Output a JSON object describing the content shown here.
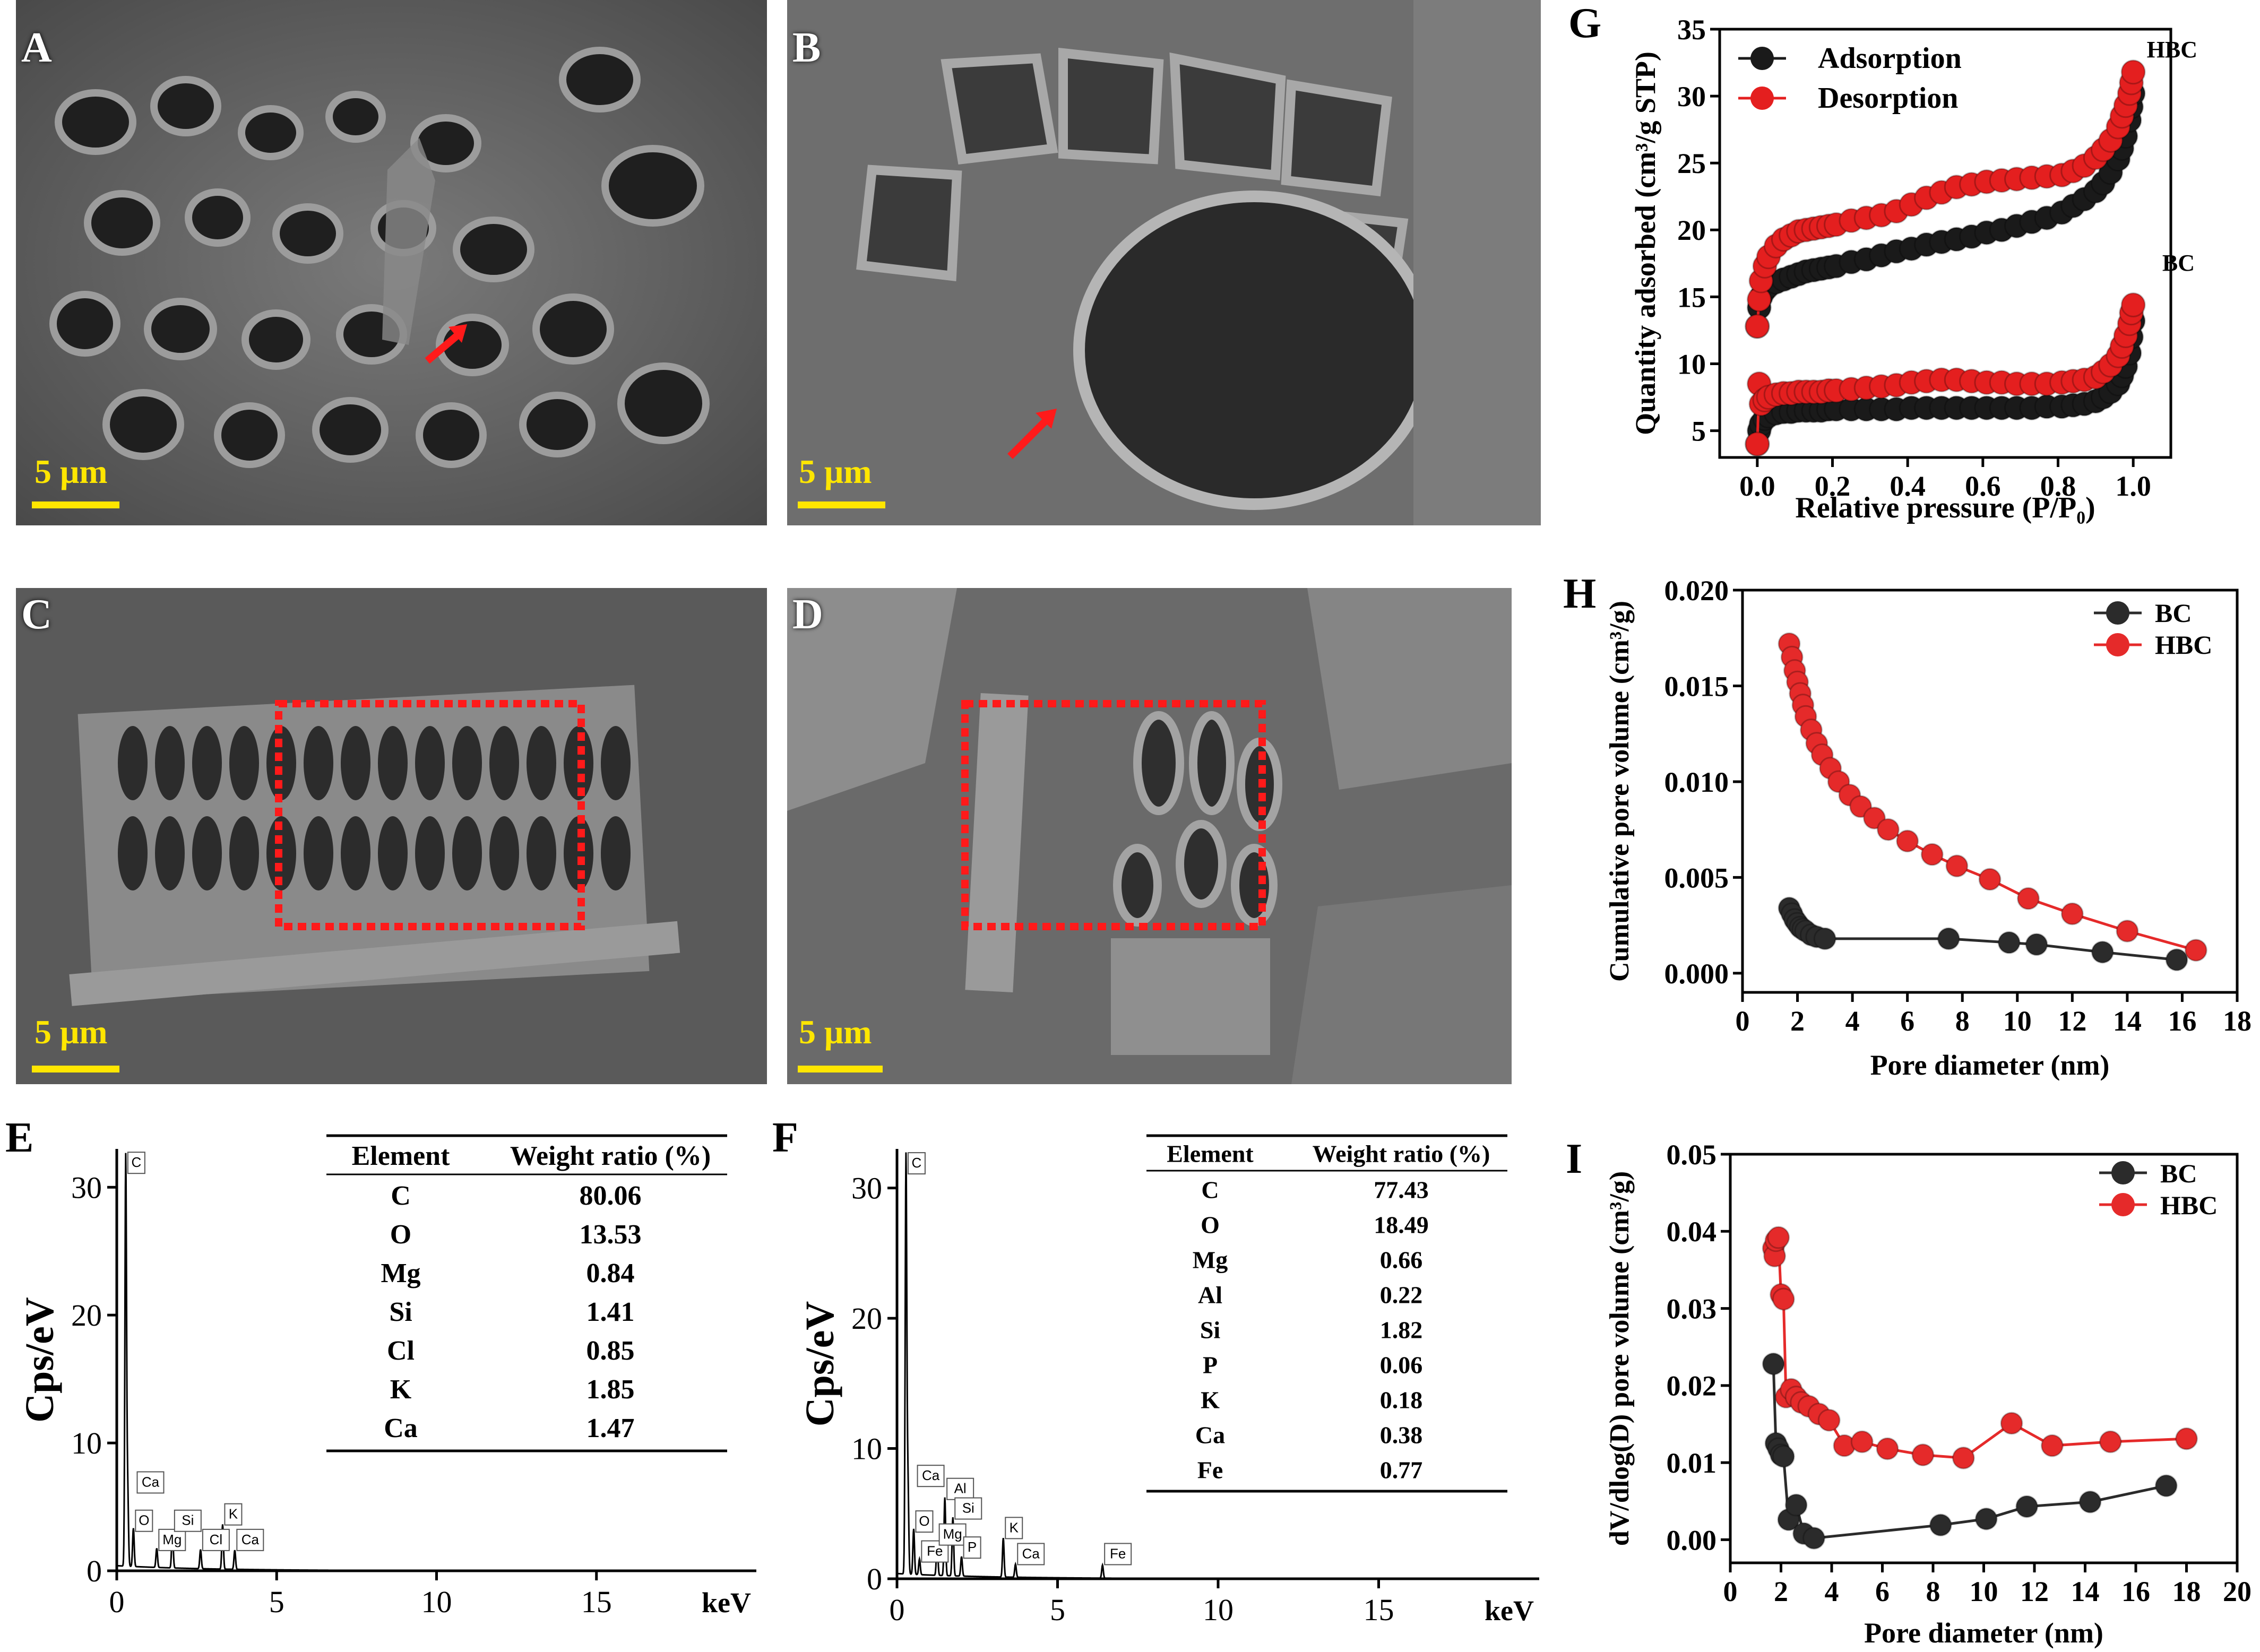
{
  "colors": {
    "adsorption": "#1a1a1a",
    "desorption": "#e41f1f",
    "bc": "#2b2b2b",
    "hbc": "#e52a2a",
    "scale_bar": "#ffe600",
    "arrow": "#ff1a1a",
    "roi_box": "#ff1a1a"
  },
  "sem_panels": [
    {
      "label": "A",
      "scale": "5 μm"
    },
    {
      "label": "B",
      "scale": "5 μm"
    },
    {
      "label": "C",
      "scale": "5 μm"
    },
    {
      "label": "D",
      "scale": "5 μm"
    }
  ],
  "chart_data": [
    {
      "panel": "G",
      "type": "scatter",
      "xlabel": "Relative pressure (P/P₀)",
      "ylabel": "Quantity adsorbed (cm³/g STP)",
      "xlim": [
        -0.1,
        1.1
      ],
      "ylim": [
        3,
        35
      ],
      "xticks": [
        "0.0",
        "0.2",
        "0.4",
        "0.6",
        "0.8",
        "1.0"
      ],
      "yticks": [
        "5",
        "10",
        "15",
        "20",
        "25",
        "30",
        "35"
      ],
      "legend": "top-left",
      "annotations": [
        "HBC",
        "BC"
      ],
      "series": [
        {
          "name": "Adsorption",
          "sample": "HBC",
          "x": [
            0.0,
            0.005,
            0.01,
            0.02,
            0.03,
            0.05,
            0.07,
            0.09,
            0.11,
            0.13,
            0.15,
            0.17,
            0.19,
            0.21,
            0.25,
            0.29,
            0.33,
            0.37,
            0.41,
            0.45,
            0.49,
            0.53,
            0.57,
            0.61,
            0.65,
            0.69,
            0.73,
            0.77,
            0.81,
            0.84,
            0.87,
            0.9,
            0.92,
            0.94,
            0.96,
            0.97,
            0.98,
            0.99,
            0.995,
            1.0
          ],
          "y": [
            12.8,
            14.2,
            15.0,
            15.5,
            15.8,
            16.1,
            16.3,
            16.5,
            16.7,
            16.9,
            17.0,
            17.1,
            17.2,
            17.3,
            17.6,
            17.8,
            18.1,
            18.4,
            18.6,
            18.9,
            19.1,
            19.3,
            19.5,
            19.8,
            20.0,
            20.3,
            20.6,
            20.9,
            21.3,
            21.8,
            22.3,
            22.9,
            23.5,
            24.3,
            25.3,
            26.1,
            27.0,
            28.2,
            29.2,
            30.2
          ]
        },
        {
          "name": "Desorption",
          "sample": "HBC",
          "x": [
            0.0,
            0.005,
            0.01,
            0.02,
            0.03,
            0.05,
            0.07,
            0.09,
            0.11,
            0.13,
            0.15,
            0.17,
            0.19,
            0.21,
            0.25,
            0.29,
            0.33,
            0.37,
            0.41,
            0.45,
            0.49,
            0.53,
            0.57,
            0.61,
            0.65,
            0.69,
            0.73,
            0.77,
            0.81,
            0.84,
            0.87,
            0.9,
            0.92,
            0.94,
            0.96,
            0.97,
            0.98,
            0.99,
            0.995,
            1.0
          ],
          "y": [
            12.8,
            14.8,
            16.2,
            17.3,
            18.0,
            18.8,
            19.3,
            19.6,
            19.9,
            20.0,
            20.1,
            20.2,
            20.3,
            20.4,
            20.7,
            20.9,
            21.1,
            21.4,
            21.9,
            22.4,
            22.8,
            23.2,
            23.4,
            23.6,
            23.7,
            23.8,
            23.9,
            24.0,
            24.1,
            24.4,
            24.8,
            25.4,
            26.0,
            26.7,
            27.7,
            28.5,
            29.3,
            30.2,
            31.0,
            31.8
          ]
        },
        {
          "name": "Adsorption",
          "sample": "BC",
          "x": [
            0.0,
            0.005,
            0.01,
            0.02,
            0.03,
            0.05,
            0.07,
            0.09,
            0.11,
            0.13,
            0.15,
            0.17,
            0.19,
            0.21,
            0.25,
            0.29,
            0.33,
            0.37,
            0.41,
            0.45,
            0.49,
            0.53,
            0.57,
            0.61,
            0.65,
            0.69,
            0.73,
            0.77,
            0.81,
            0.84,
            0.87,
            0.9,
            0.92,
            0.94,
            0.96,
            0.97,
            0.98,
            0.99,
            0.995,
            1.0
          ],
          "y": [
            4.0,
            5.0,
            5.5,
            5.9,
            6.1,
            6.3,
            6.4,
            6.4,
            6.5,
            6.5,
            6.5,
            6.5,
            6.6,
            6.6,
            6.6,
            6.6,
            6.6,
            6.6,
            6.7,
            6.7,
            6.7,
            6.7,
            6.7,
            6.7,
            6.7,
            6.7,
            6.7,
            6.8,
            6.8,
            6.9,
            7.0,
            7.2,
            7.5,
            7.9,
            8.5,
            9.1,
            9.8,
            10.8,
            12.0,
            13.2
          ]
        },
        {
          "name": "Desorption",
          "sample": "BC",
          "x": [
            0.0,
            0.005,
            0.01,
            0.02,
            0.03,
            0.05,
            0.07,
            0.09,
            0.11,
            0.13,
            0.15,
            0.17,
            0.19,
            0.21,
            0.25,
            0.29,
            0.33,
            0.37,
            0.41,
            0.45,
            0.49,
            0.53,
            0.57,
            0.61,
            0.65,
            0.69,
            0.73,
            0.77,
            0.81,
            0.84,
            0.87,
            0.9,
            0.92,
            0.94,
            0.96,
            0.97,
            0.98,
            0.99,
            0.995,
            1.0
          ],
          "y": [
            4.0,
            8.5,
            7.0,
            7.3,
            7.5,
            7.7,
            7.8,
            7.8,
            7.9,
            7.9,
            7.9,
            7.9,
            8.0,
            8.0,
            8.1,
            8.2,
            8.3,
            8.4,
            8.6,
            8.7,
            8.8,
            8.8,
            8.7,
            8.6,
            8.6,
            8.5,
            8.5,
            8.5,
            8.6,
            8.7,
            8.8,
            9.0,
            9.4,
            9.9,
            10.6,
            11.3,
            12.1,
            13.0,
            13.8,
            14.4
          ]
        }
      ]
    },
    {
      "panel": "H",
      "type": "line",
      "xlabel": "Pore diameter (nm)",
      "ylabel": "Cumulative pore volume (cm³/g)",
      "xlim": [
        0,
        18
      ],
      "ylim": [
        -0.001,
        0.02
      ],
      "xticks": [
        "0",
        "2",
        "4",
        "6",
        "8",
        "10",
        "12",
        "14",
        "16",
        "18"
      ],
      "yticks": [
        "0.000",
        "0.005",
        "0.010",
        "0.015",
        "0.020"
      ],
      "legend": "top-right",
      "series": [
        {
          "name": "BC",
          "x": [
            1.7,
            1.8,
            1.9,
            2.0,
            2.1,
            2.2,
            2.3,
            2.5,
            2.7,
            3.0,
            7.5,
            9.7,
            10.7,
            13.1,
            15.8
          ],
          "y": [
            0.0034,
            0.0031,
            0.0028,
            0.0026,
            0.0024,
            0.0023,
            0.0022,
            0.002,
            0.0019,
            0.0018,
            0.0018,
            0.0016,
            0.0015,
            0.0011,
            0.0007
          ]
        },
        {
          "name": "HBC",
          "x": [
            1.7,
            1.8,
            1.9,
            2.0,
            2.1,
            2.2,
            2.3,
            2.5,
            2.7,
            2.9,
            3.2,
            3.5,
            3.9,
            4.3,
            4.8,
            5.3,
            6.0,
            6.9,
            7.8,
            9.0,
            10.4,
            12.0,
            14.0,
            16.5
          ],
          "y": [
            0.0172,
            0.0165,
            0.0158,
            0.0152,
            0.0146,
            0.014,
            0.0134,
            0.0127,
            0.012,
            0.0114,
            0.0107,
            0.01,
            0.0093,
            0.0087,
            0.0081,
            0.0075,
            0.0069,
            0.0062,
            0.0056,
            0.0049,
            0.0039,
            0.0031,
            0.0022,
            0.0012
          ]
        }
      ]
    },
    {
      "panel": "I",
      "type": "line",
      "xlabel": "Pore diameter (nm)",
      "ylabel": "dV/dlog(D) pore volume (cm³/g)",
      "xlim": [
        0,
        20
      ],
      "ylim": [
        -0.003,
        0.05
      ],
      "xticks": [
        "0",
        "2",
        "4",
        "6",
        "8",
        "10",
        "12",
        "14",
        "16",
        "18",
        "20"
      ],
      "yticks": [
        "0.00",
        "0.01",
        "0.02",
        "0.03",
        "0.04",
        "0.05"
      ],
      "legend": "top-right",
      "series": [
        {
          "name": "BC",
          "x": [
            1.7,
            1.8,
            1.9,
            2.0,
            2.1,
            2.3,
            2.6,
            2.9,
            3.3,
            8.3,
            10.1,
            11.7,
            14.2,
            17.2
          ],
          "y": [
            0.0228,
            0.0125,
            0.0118,
            0.011,
            0.0108,
            0.0026,
            0.0045,
            0.0008,
            0.0002,
            0.0019,
            0.0027,
            0.0043,
            0.0049,
            0.007
          ]
        },
        {
          "name": "HBC",
          "x": [
            1.7,
            1.75,
            1.8,
            1.9,
            2.0,
            2.1,
            2.2,
            2.4,
            2.6,
            2.8,
            3.1,
            3.5,
            3.9,
            4.5,
            5.2,
            6.2,
            7.6,
            9.2,
            11.1,
            12.7,
            15.0,
            18.0
          ],
          "y": [
            0.0378,
            0.0368,
            0.0388,
            0.0392,
            0.0318,
            0.0312,
            0.0185,
            0.0195,
            0.0185,
            0.0178,
            0.0173,
            0.0163,
            0.0155,
            0.0122,
            0.0127,
            0.0118,
            0.011,
            0.0106,
            0.0151,
            0.0122,
            0.0127,
            0.0131
          ]
        }
      ]
    },
    {
      "panel": "E",
      "type": "line",
      "xlabel": "keV",
      "ylabel": "Cps/eV",
      "xlim": [
        0,
        20
      ],
      "ylim": [
        0,
        33
      ],
      "xticks": [
        "0",
        "5",
        "10",
        "15"
      ],
      "yticks": [
        "0",
        "10",
        "20",
        "30"
      ],
      "peaks": [
        {
          "element": "C",
          "kev": 0.28,
          "height": 32
        },
        {
          "element": "Ca",
          "kev": 0.34,
          "height": 6
        },
        {
          "element": "O",
          "kev": 0.52,
          "height": 3
        },
        {
          "element": "Mg",
          "kev": 1.25,
          "height": 1.5
        },
        {
          "element": "Si",
          "kev": 1.74,
          "height": 3
        },
        {
          "element": "Cl",
          "kev": 2.62,
          "height": 1.5
        },
        {
          "element": "K",
          "kev": 3.31,
          "height": 3.5
        },
        {
          "element": "Ca",
          "kev": 3.69,
          "height": 1.5
        }
      ],
      "table": {
        "headers": [
          "Element",
          "Weight ratio (%)"
        ],
        "rows": [
          [
            "C",
            "80.06"
          ],
          [
            "O",
            "13.53"
          ],
          [
            "Mg",
            "0.84"
          ],
          [
            "Si",
            "1.41"
          ],
          [
            "Cl",
            "0.85"
          ],
          [
            "K",
            "1.85"
          ],
          [
            "Ca",
            "1.47"
          ]
        ]
      }
    },
    {
      "panel": "F",
      "type": "line",
      "xlabel": "keV",
      "ylabel": "Cps/eV",
      "xlim": [
        0,
        20
      ],
      "ylim": [
        0,
        33
      ],
      "xticks": [
        "0",
        "5",
        "10",
        "15"
      ],
      "yticks": [
        "0",
        "10",
        "20",
        "30"
      ],
      "peaks": [
        {
          "element": "C",
          "kev": 0.28,
          "height": 32
        },
        {
          "element": "Ca",
          "kev": 0.34,
          "height": 7
        },
        {
          "element": "O",
          "kev": 0.52,
          "height": 3.5
        },
        {
          "element": "Fe",
          "kev": 0.7,
          "height": 1.2
        },
        {
          "element": "Mg",
          "kev": 1.25,
          "height": 2.5
        },
        {
          "element": "Al",
          "kev": 1.49,
          "height": 6
        },
        {
          "element": "Si",
          "kev": 1.74,
          "height": 4.5
        },
        {
          "element": "P",
          "kev": 2.01,
          "height": 1.5
        },
        {
          "element": "K",
          "kev": 3.31,
          "height": 3
        },
        {
          "element": "Ca",
          "kev": 3.69,
          "height": 1
        },
        {
          "element": "Fe",
          "kev": 6.4,
          "height": 1
        }
      ],
      "table": {
        "headers": [
          "Element",
          "Weight ratio (%)"
        ],
        "rows": [
          [
            "C",
            "77.43"
          ],
          [
            "O",
            "18.49"
          ],
          [
            "Mg",
            "0.66"
          ],
          [
            "Al",
            "0.22"
          ],
          [
            "Si",
            "1.82"
          ],
          [
            "P",
            "0.06"
          ],
          [
            "K",
            "0.18"
          ],
          [
            "Ca",
            "0.38"
          ],
          [
            "Fe",
            "0.77"
          ]
        ]
      }
    }
  ]
}
